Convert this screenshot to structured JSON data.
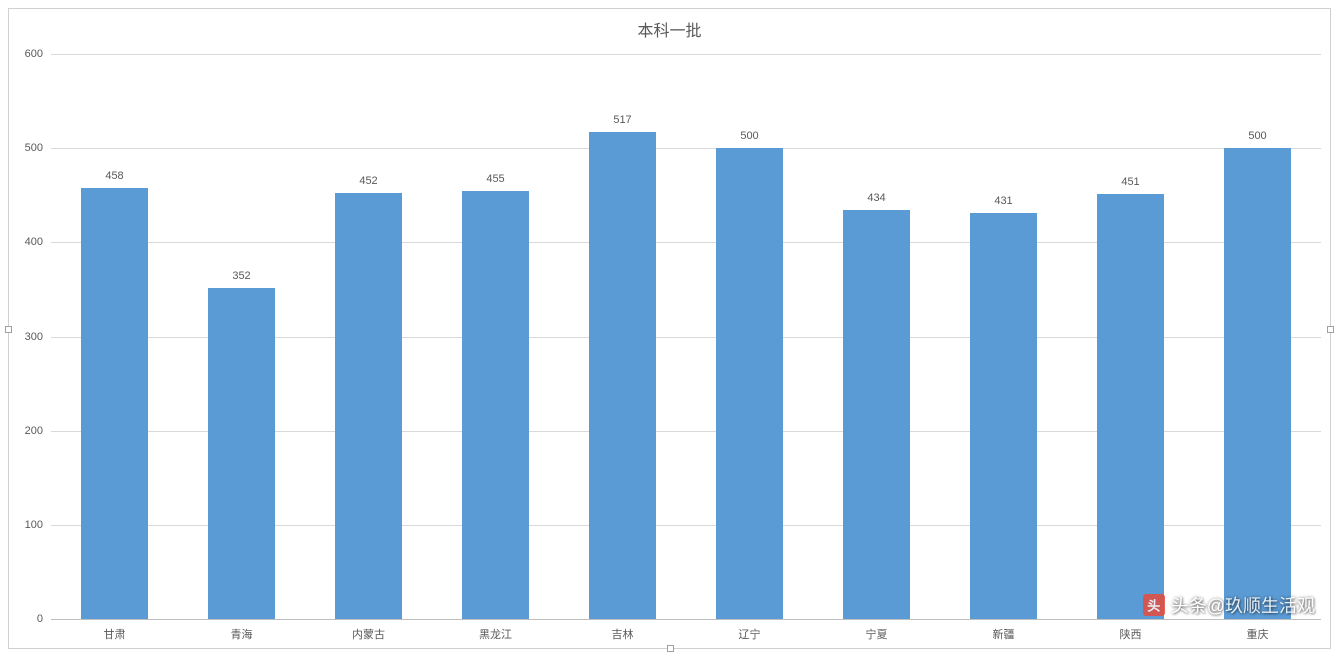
{
  "chart": {
    "type": "bar",
    "title": "本科一批",
    "title_fontsize": 16,
    "title_color": "#595959",
    "categories": [
      "甘肃",
      "青海",
      "内蒙古",
      "黑龙江",
      "吉林",
      "辽宁",
      "宁夏",
      "新疆",
      "陕西",
      "重庆"
    ],
    "values": [
      458,
      352,
      452,
      455,
      517,
      500,
      434,
      431,
      451,
      500
    ],
    "bar_color": "#5b9bd5",
    "background_color": "#ffffff",
    "grid_color": "#d9d9d9",
    "axis_color": "#bfbfbf",
    "label_color": "#595959",
    "label_fontsize": 11,
    "ylim": [
      0,
      600
    ],
    "ytick_step": 100,
    "bar_width_ratio": 0.52,
    "border_color": "#d0d0d0"
  },
  "watermark": {
    "text": "头条@玖顺生活观"
  }
}
